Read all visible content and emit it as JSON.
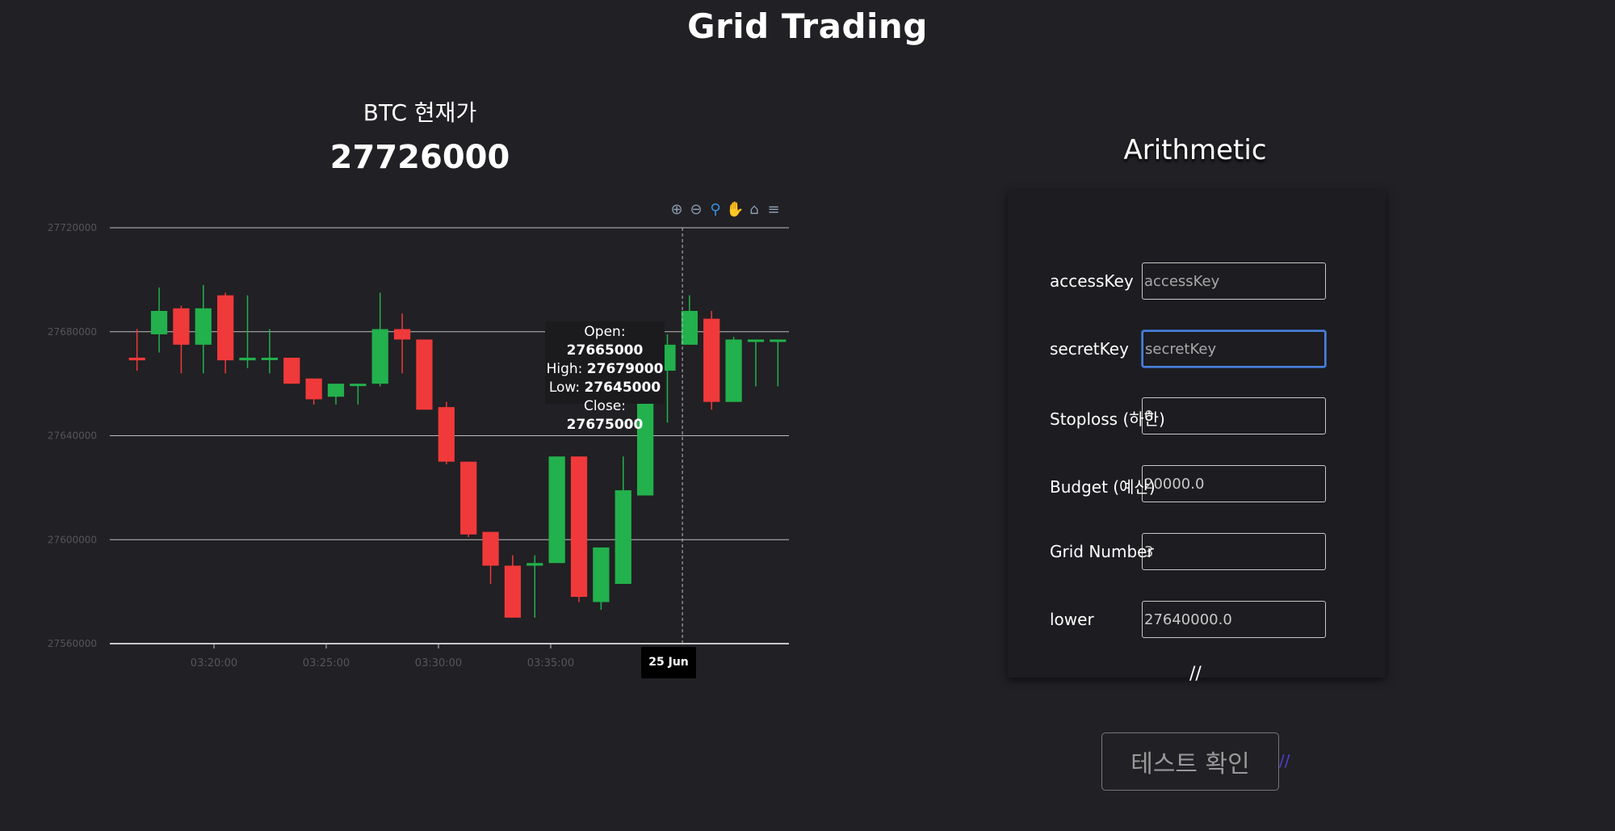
{
  "page_title": "Grid Trading",
  "btc": {
    "label": "BTC 현재가",
    "price": "27726000"
  },
  "chart_data": {
    "type": "candlestick",
    "ylim": [
      27560000,
      27720000
    ],
    "y_ticks": [
      "27720000",
      "27680000",
      "27640000",
      "27600000",
      "27560000"
    ],
    "x_ticks": [
      "03:20:00",
      "03:25:00",
      "03:30:00",
      "03:35:00"
    ],
    "up_color": "#22b14c",
    "down_color": "#f0393a",
    "candles": [
      {
        "open": 27670000,
        "close": 27669000,
        "high": 27681000,
        "low": 27665000
      },
      {
        "open": 27679000,
        "close": 27688000,
        "high": 27697000,
        "low": 27672000
      },
      {
        "open": 27689000,
        "close": 27675000,
        "high": 27690000,
        "low": 27664000
      },
      {
        "open": 27675000,
        "close": 27689000,
        "high": 27698000,
        "low": 27664000
      },
      {
        "open": 27694000,
        "close": 27669000,
        "high": 27695000,
        "low": 27664000
      },
      {
        "open": 27669000,
        "close": 27670000,
        "high": 27694000,
        "low": 27666000
      },
      {
        "open": 27670000,
        "close": 27670000,
        "high": 27681000,
        "low": 27664000
      },
      {
        "open": 27670000,
        "close": 27660000,
        "high": 27670000,
        "low": 27660000
      },
      {
        "open": 27662000,
        "close": 27654000,
        "high": 27662000,
        "low": 27652000
      },
      {
        "open": 27655000,
        "close": 27660000,
        "high": 27660000,
        "low": 27652000
      },
      {
        "open": 27660000,
        "close": 27660000,
        "high": 27660000,
        "low": 27652000
      },
      {
        "open": 27660000,
        "close": 27681000,
        "high": 27695000,
        "low": 27659000
      },
      {
        "open": 27681000,
        "close": 27677000,
        "high": 27687000,
        "low": 27664000
      },
      {
        "open": 27677000,
        "close": 27650000,
        "high": 27677000,
        "low": 27650000
      },
      {
        "open": 27651000,
        "close": 27630000,
        "high": 27653000,
        "low": 27629000
      },
      {
        "open": 27630000,
        "close": 27602000,
        "high": 27630000,
        "low": 27601000
      },
      {
        "open": 27603000,
        "close": 27590000,
        "high": 27603000,
        "low": 27583000
      },
      {
        "open": 27590000,
        "close": 27570000,
        "high": 27594000,
        "low": 27570000
      },
      {
        "open": 27590000,
        "close": 27591000,
        "high": 27594000,
        "low": 27570000
      },
      {
        "open": 27591000,
        "close": 27632000,
        "high": 27632000,
        "low": 27591000
      },
      {
        "open": 27632000,
        "close": 27578000,
        "high": 27632000,
        "low": 27576000
      },
      {
        "open": 27576000,
        "close": 27597000,
        "high": 27597000,
        "low": 27573000
      },
      {
        "open": 27583000,
        "close": 27619000,
        "high": 27632000,
        "low": 27583000
      },
      {
        "open": 27617000,
        "close": 27657000,
        "high": 27673000,
        "low": 27617000
      },
      {
        "open": 27665000,
        "close": 27675000,
        "high": 27679000,
        "low": 27645000
      },
      {
        "open": 27675000,
        "close": 27688000,
        "high": 27694000,
        "low": 27675000
      },
      {
        "open": 27685000,
        "close": 27653000,
        "high": 27688000,
        "low": 27650000
      },
      {
        "open": 27653000,
        "close": 27677000,
        "high": 27678000,
        "low": 27653000
      },
      {
        "open": 27677000,
        "close": 27677000,
        "high": 27677000,
        "low": 27659000
      },
      {
        "open": 27677000,
        "close": 27677000,
        "high": 27677000,
        "low": 27659000
      }
    ],
    "tooltip": {
      "open": "27665000",
      "high": "27679000",
      "low": "27645000",
      "close": "27675000"
    },
    "crosshair_date": "25 Jun",
    "grid": true,
    "toolbar": [
      "zoom-in",
      "zoom-out",
      "zoom",
      "pan",
      "reset",
      "menu"
    ]
  },
  "tooltip_labels": {
    "open": "Open:",
    "high": "High:",
    "low": "Low:",
    "close": "Close:"
  },
  "strategy": {
    "title": "Arithmetic"
  },
  "form": {
    "access_key": {
      "label": "accessKey",
      "placeholder": "accessKey",
      "value": ""
    },
    "secret_key": {
      "label": "secretKey",
      "placeholder": "secretKey",
      "value": ""
    },
    "stoploss": {
      "label": "Stoploss (하한)",
      "value": "0"
    },
    "budget": {
      "label": "Budget (예산)",
      "value": "20000.0"
    },
    "grid_number": {
      "label": "Grid Number",
      "value": "3"
    },
    "lower": {
      "label": "lower",
      "value": "27640000.0"
    },
    "resize_glyph": "//"
  },
  "test_button": {
    "label": "테스트 확인",
    "mark": "//"
  }
}
